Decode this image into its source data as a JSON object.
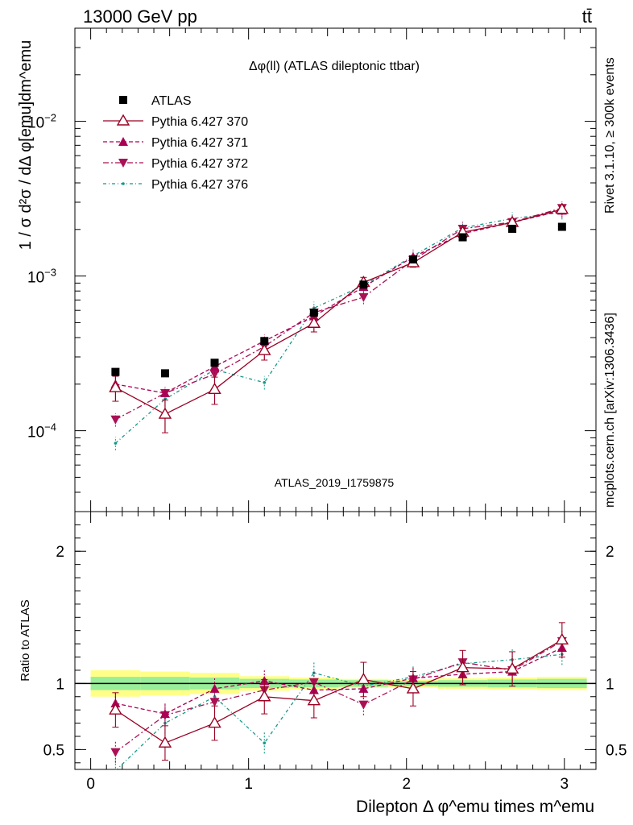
{
  "header": {
    "left": "13000 GeV pp",
    "right": "tt̄"
  },
  "side_labels": {
    "rivet": "Rivet 3.1.10, ≥ 300k events",
    "mcplots": "mcplots.cern.ch [arXiv:1306.3436]"
  },
  "colors": {
    "data": "#000000",
    "p370": "#990022",
    "p371": "#aa0055",
    "p372": "#aa1155",
    "p376": "#119988",
    "band_inner": "#99ee99",
    "band_outer": "#ffff88"
  },
  "chart_data": [
    {
      "type": "scatter",
      "title": "Δφ(ll) (ATLAS dileptonic ttbar)",
      "ylabel": "1 / σ  d²σ / dΔ φ[emu]dm^emu",
      "xlabel": "",
      "ylog": true,
      "xlim": [
        -0.1,
        3.2
      ],
      "ylim": [
        3e-05,
        0.04
      ],
      "yticks": [
        "10^-4",
        "10^-3",
        "10^-2"
      ],
      "watermark": "ATLAS_2019_I1759875",
      "legend_position": "top-left",
      "x": [
        0.157,
        0.471,
        0.785,
        1.1,
        1.414,
        1.728,
        2.042,
        2.356,
        2.67,
        2.985
      ],
      "series": [
        {
          "name": "ATLAS",
          "values": [
            0.00024,
            0.000235,
            0.000275,
            0.00038,
            0.00058,
            0.00088,
            0.00128,
            0.00178,
            0.00202,
            0.00208
          ]
        },
        {
          "name": "Pythia 6.427 370",
          "values": [
            0.00019,
            0.000128,
            0.000185,
            0.00033,
            0.000495,
            0.00091,
            0.00122,
            0.00192,
            0.00222,
            0.0027
          ],
          "err_low": [
            0.000155,
            9.7e-05,
            0.000148,
            0.000286,
            0.000435,
            0.00084,
            0.00114,
            0.00181,
            0.00211,
            0.00259
          ],
          "err_high": [
            0.000225,
            0.000158,
            0.000222,
            0.000376,
            0.00056,
            0.00098,
            0.0013,
            0.00203,
            0.00233,
            0.00281
          ]
        },
        {
          "name": "Pythia 6.427 371",
          "values": [
            0.0002,
            0.000175,
            0.00026,
            0.00038,
            0.00055,
            0.00085,
            0.00133,
            0.00188,
            0.00222,
            0.00265
          ]
        },
        {
          "name": "Pythia 6.427 372",
          "values": [
            0.000118,
            0.000175,
            0.000232,
            0.00035,
            0.00058,
            0.00073,
            0.00127,
            0.00202,
            0.00223,
            0.00275
          ]
        },
        {
          "name": "Pythia 6.427 376",
          "values": [
            8.3e-05,
            0.00016,
            0.000248,
            0.000205,
            0.00062,
            0.00087,
            0.00135,
            0.00205,
            0.00235,
            0.00258
          ]
        }
      ]
    },
    {
      "type": "scatter",
      "title": "",
      "ylabel": "Ratio to ATLAS",
      "xlabel": "Dilepton Δ φ^emu times m^emu",
      "xlim": [
        -0.1,
        3.2
      ],
      "ylim": [
        0.35,
        2.3
      ],
      "xticks": [
        "0",
        "1",
        "2",
        "3"
      ],
      "yticks": [
        "0.5",
        "1",
        "2"
      ],
      "x": [
        0.157,
        0.471,
        0.785,
        1.1,
        1.414,
        1.728,
        2.042,
        2.356,
        2.67,
        2.985
      ],
      "band_inner_halfwidth": [
        0.05,
        0.05,
        0.045,
        0.035,
        0.03,
        0.025,
        0.02,
        0.025,
        0.03,
        0.035
      ],
      "band_outer_halfwidth": [
        0.1,
        0.09,
        0.08,
        0.055,
        0.045,
        0.035,
        0.03,
        0.04,
        0.045,
        0.05
      ],
      "series": [
        {
          "name": "Pythia 6.427 370",
          "values": [
            0.8,
            0.55,
            0.7,
            0.9,
            0.87,
            1.03,
            0.96,
            1.12,
            1.11,
            1.33
          ]
        },
        {
          "name": "Pythia 6.427 371",
          "values": [
            0.85,
            0.77,
            0.96,
            1.02,
            0.95,
            0.96,
            1.04,
            1.07,
            1.09,
            1.27
          ]
        },
        {
          "name": "Pythia 6.427 372",
          "values": [
            0.48,
            0.76,
            0.86,
            0.95,
            1.01,
            0.84,
            1.03,
            1.16,
            1.1,
            1.32
          ]
        },
        {
          "name": "Pythia 6.427 376",
          "values": [
            0.34,
            0.7,
            0.9,
            0.55,
            1.08,
            0.98,
            1.05,
            1.15,
            1.18,
            1.22
          ]
        }
      ]
    }
  ]
}
